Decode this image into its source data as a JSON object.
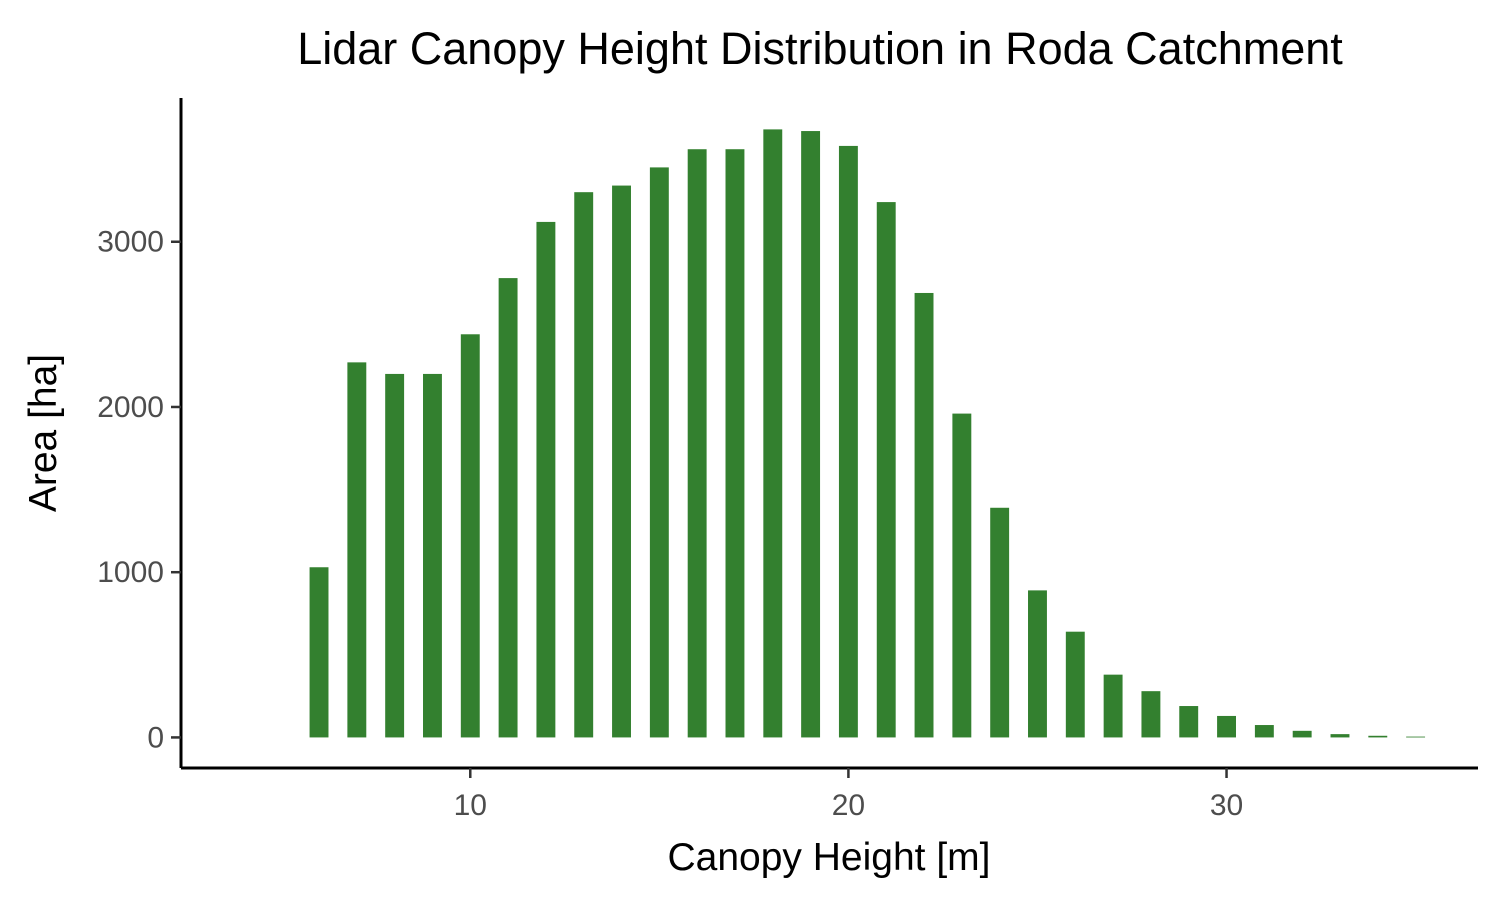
{
  "chart_data": {
    "type": "bar",
    "title": "Lidar Canopy Height Distribution in Roda Catchment",
    "xlabel": "Canopy Height [m]",
    "ylabel": "Area [ha]",
    "x": [
      6,
      7,
      8,
      9,
      10,
      11,
      12,
      13,
      14,
      15,
      16,
      17,
      18,
      19,
      20,
      21,
      22,
      23,
      24,
      25,
      26,
      27,
      28,
      29,
      30,
      31,
      32,
      33,
      34,
      35
    ],
    "values": [
      1030,
      2270,
      2200,
      2200,
      2440,
      2780,
      3120,
      3300,
      3340,
      3450,
      3560,
      3560,
      3680,
      3670,
      3580,
      3240,
      2690,
      1960,
      1390,
      890,
      640,
      380,
      280,
      190,
      130,
      75,
      40,
      20,
      10,
      5
    ],
    "xlim": [
      2.35,
      36.65
    ],
    "ylim": [
      -185,
      3870
    ],
    "xticks": [
      10,
      20,
      30
    ],
    "xtick_labels": [
      "10",
      "20",
      "30"
    ],
    "yticks": [
      0,
      1000,
      2000,
      3000
    ],
    "ytick_labels": [
      "0",
      "1000",
      "2000",
      "3000"
    ],
    "bar_color": "#33802f",
    "grid": false,
    "legend": "none"
  }
}
